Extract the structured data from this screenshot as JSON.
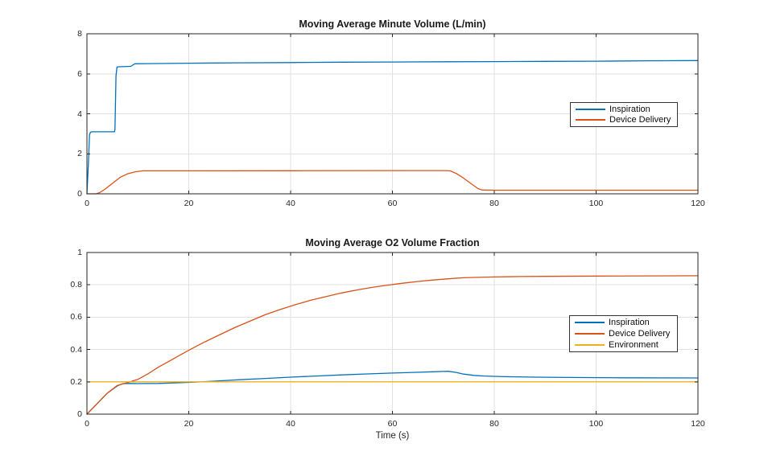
{
  "figure": {
    "background": "#ffffff"
  },
  "palette": {
    "blue": "#0072BD",
    "orange": "#D95319",
    "yellow": "#EDB120",
    "axis_color": "#262626",
    "grid_color": "#e2e2e2",
    "tick_label_color": "#262626",
    "title_color": "#1a1a1a",
    "legend_border": "#333333"
  },
  "chart_data": [
    {
      "type": "line",
      "title": "Moving Average Minute Volume (L/min)",
      "xlabel": "",
      "ylabel": "",
      "xlim": [
        0,
        120
      ],
      "ylim": [
        0,
        8
      ],
      "xticks": [
        0,
        20,
        40,
        60,
        80,
        100,
        120
      ],
      "yticks": [
        0,
        2,
        4,
        6,
        8
      ],
      "grid": true,
      "legend": {
        "location": "east",
        "entries": [
          "Inspiration",
          "Device Delivery"
        ]
      },
      "series": [
        {
          "name": "Inspiration",
          "color": "#0072BD",
          "points": [
            [
              0,
              0
            ],
            [
              0.3,
              1.6
            ],
            [
              0.5,
              2.95
            ],
            [
              0.7,
              3.08
            ],
            [
              1,
              3.1
            ],
            [
              5.4,
              3.1
            ],
            [
              5.5,
              3.2
            ],
            [
              5.7,
              5.9
            ],
            [
              5.9,
              6.33
            ],
            [
              6.2,
              6.35
            ],
            [
              8.6,
              6.37
            ],
            [
              9.4,
              6.5
            ],
            [
              12,
              6.51
            ],
            [
              20,
              6.53
            ],
            [
              30,
              6.55
            ],
            [
              40,
              6.56
            ],
            [
              50,
              6.58
            ],
            [
              60,
              6.59
            ],
            [
              70,
              6.6
            ],
            [
              80,
              6.61
            ],
            [
              90,
              6.62
            ],
            [
              100,
              6.63
            ],
            [
              110,
              6.65
            ],
            [
              120,
              6.66
            ]
          ]
        },
        {
          "name": "Device Delivery",
          "color": "#D95319",
          "points": [
            [
              0,
              0
            ],
            [
              1.8,
              0
            ],
            [
              2.5,
              0.06
            ],
            [
              3.5,
              0.22
            ],
            [
              5,
              0.52
            ],
            [
              6.5,
              0.82
            ],
            [
              8,
              1.0
            ],
            [
              9.5,
              1.1
            ],
            [
              11,
              1.15
            ],
            [
              40,
              1.155
            ],
            [
              70,
              1.16
            ],
            [
              71.3,
              1.15
            ],
            [
              72.5,
              1.02
            ],
            [
              74,
              0.78
            ],
            [
              75.5,
              0.5
            ],
            [
              76.8,
              0.26
            ],
            [
              77.6,
              0.19
            ],
            [
              80,
              0.18
            ],
            [
              100,
              0.18
            ],
            [
              120,
              0.18
            ]
          ]
        }
      ]
    },
    {
      "type": "line",
      "title": "Moving Average O2 Volume Fraction",
      "xlabel": "Time (s)",
      "ylabel": "",
      "xlim": [
        0,
        120
      ],
      "ylim": [
        0,
        1
      ],
      "xticks": [
        0,
        20,
        40,
        60,
        80,
        100,
        120
      ],
      "yticks": [
        0,
        0.2,
        0.4,
        0.6,
        0.8,
        1
      ],
      "grid": true,
      "legend": {
        "location": "east",
        "entries": [
          "Inspiration",
          "Device Delivery",
          "Environment"
        ]
      },
      "series": [
        {
          "name": "Inspiration",
          "color": "#0072BD",
          "points": [
            [
              0,
              0
            ],
            [
              2,
              0.065
            ],
            [
              4,
              0.13
            ],
            [
              6,
              0.175
            ],
            [
              7,
              0.188
            ],
            [
              8,
              0.19
            ],
            [
              10,
              0.189
            ],
            [
              14,
              0.19
            ],
            [
              18,
              0.194
            ],
            [
              22,
              0.199
            ],
            [
              26,
              0.206
            ],
            [
              30,
              0.213
            ],
            [
              35,
              0.221
            ],
            [
              40,
              0.229
            ],
            [
              45,
              0.236
            ],
            [
              50,
              0.243
            ],
            [
              55,
              0.249
            ],
            [
              60,
              0.254
            ],
            [
              64,
              0.258
            ],
            [
              68,
              0.262
            ],
            [
              70,
              0.264
            ],
            [
              71,
              0.265
            ],
            [
              72.5,
              0.258
            ],
            [
              74,
              0.248
            ],
            [
              76,
              0.24
            ],
            [
              78,
              0.236
            ],
            [
              82,
              0.232
            ],
            [
              88,
              0.229
            ],
            [
              95,
              0.227
            ],
            [
              105,
              0.225
            ],
            [
              120,
              0.224
            ]
          ]
        },
        {
          "name": "Device Delivery",
          "color": "#D95319",
          "points": [
            [
              0,
              0
            ],
            [
              2,
              0.065
            ],
            [
              4,
              0.13
            ],
            [
              6,
              0.178
            ],
            [
              8,
              0.195
            ],
            [
              9,
              0.205
            ],
            [
              10,
              0.215
            ],
            [
              12,
              0.25
            ],
            [
              14,
              0.29
            ],
            [
              16,
              0.325
            ],
            [
              18,
              0.36
            ],
            [
              20,
              0.395
            ],
            [
              23,
              0.445
            ],
            [
              26,
              0.49
            ],
            [
              29,
              0.535
            ],
            [
              32,
              0.575
            ],
            [
              35,
              0.615
            ],
            [
              38,
              0.648
            ],
            [
              41,
              0.678
            ],
            [
              44,
              0.705
            ],
            [
              47,
              0.728
            ],
            [
              50,
              0.75
            ],
            [
              53,
              0.768
            ],
            [
              56,
              0.784
            ],
            [
              59,
              0.798
            ],
            [
              62,
              0.81
            ],
            [
              65,
              0.821
            ],
            [
              68,
              0.83
            ],
            [
              70,
              0.835
            ],
            [
              72,
              0.84
            ],
            [
              74,
              0.844
            ],
            [
              76,
              0.846
            ],
            [
              80,
              0.849
            ],
            [
              85,
              0.851
            ],
            [
              90,
              0.852
            ],
            [
              100,
              0.854
            ],
            [
              110,
              0.855
            ],
            [
              120,
              0.856
            ]
          ]
        },
        {
          "name": "Environment",
          "color": "#EDB120",
          "points": [
            [
              0,
              0.2
            ],
            [
              120,
              0.2
            ]
          ]
        }
      ]
    }
  ]
}
